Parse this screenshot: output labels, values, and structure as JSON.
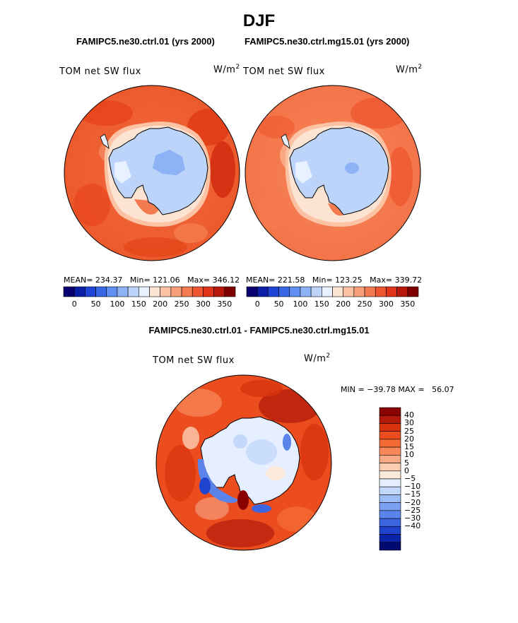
{
  "page": {
    "title": "DJF"
  },
  "panels": [
    {
      "case": "FAMIPC5.ne30.ctrl.01 (yrs 2000)",
      "variable": "TOM net SW flux",
      "units_base": "W/m",
      "units_exp": "2",
      "stats": {
        "mean_label": "MEAN=",
        "mean": "234.37",
        "min_label": "Min=",
        "min": "121.06",
        "max_label": "Max=",
        "max": "346.12"
      }
    },
    {
      "case": "FAMIPC5.ne30.ctrl.mg15.01 (yrs 2000)",
      "variable": "TOM net SW flux",
      "units_base": "W/m",
      "units_exp": "2",
      "stats": {
        "mean_label": "MEAN=",
        "mean": "221.58",
        "min_label": "Min=",
        "min": "123.25",
        "max_label": "Max=",
        "max": "339.72"
      }
    }
  ],
  "field_colorbar": {
    "colors": [
      "#08006e",
      "#0a1fa6",
      "#1f45d6",
      "#3868e6",
      "#5f8ff0",
      "#8db2f6",
      "#bcd4fa",
      "#e8f1ff",
      "#fde3d2",
      "#fbc3a4",
      "#f89f78",
      "#f47a4f",
      "#ee5530",
      "#e03418",
      "#b8170c",
      "#7e0000"
    ],
    "tick_labels": [
      "0",
      "50",
      "100",
      "150",
      "200",
      "250",
      "300",
      "350"
    ]
  },
  "difference": {
    "title": "FAMIPC5.ne30.ctrl.01 - FAMIPC5.ne30.ctrl.mg15.01",
    "variable": "TOM net SW flux",
    "units_base": "W/m",
    "units_exp": "2",
    "min_label": "MIN =",
    "min": "−39.78",
    "max_label": "MAX =",
    "max": "56.07",
    "colorbar": {
      "colors": [
        "#8b0000",
        "#b31a0b",
        "#d8330e",
        "#ec4d1e",
        "#f46a34",
        "#f7875a",
        "#f9a985",
        "#fccdb3",
        "#fbe9dc",
        "#e6efff",
        "#c4d8fb",
        "#9ebdf6",
        "#7aa0f0",
        "#5a84ea",
        "#3b66e2",
        "#2043cf",
        "#0c22a8",
        "#020a6f"
      ],
      "tick_labels": [
        "40",
        "30",
        "25",
        "20",
        "15",
        "10",
        "5",
        "0",
        "−5",
        "−10",
        "−15",
        "−20",
        "−25",
        "−30",
        "−40"
      ]
    }
  }
}
